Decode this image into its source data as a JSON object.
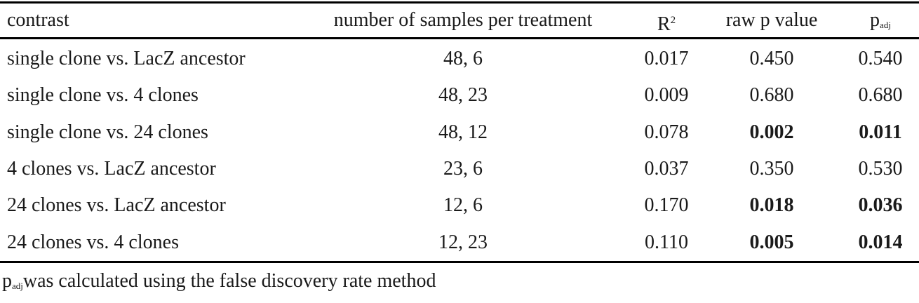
{
  "table": {
    "headers": {
      "contrast": "contrast",
      "samples": "number of samples per treatment",
      "r2_base": "R",
      "r2_sup": "2",
      "raw_p": "raw p value",
      "padj_base": "p",
      "padj_sub": "adj"
    },
    "rows": [
      {
        "contrast": "single clone vs. LacZ ancestor",
        "samples": "48, 6",
        "r2": "0.017",
        "raw_p": "0.450",
        "padj": "0.540",
        "raw_bold": false,
        "padj_bold": false
      },
      {
        "contrast": "single clone vs. 4 clones",
        "samples": "48, 23",
        "r2": "0.009",
        "raw_p": "0.680",
        "padj": "0.680",
        "raw_bold": false,
        "padj_bold": false
      },
      {
        "contrast": "single clone vs. 24 clones",
        "samples": "48, 12",
        "r2": "0.078",
        "raw_p": "0.002",
        "padj": "0.011",
        "raw_bold": true,
        "padj_bold": true
      },
      {
        "contrast": "4 clones vs. LacZ ancestor",
        "samples": "23, 6",
        "r2": "0.037",
        "raw_p": "0.350",
        "padj": "0.530",
        "raw_bold": false,
        "padj_bold": false
      },
      {
        "contrast": "24 clones vs. LacZ ancestor",
        "samples": "12, 6",
        "r2": "0.170",
        "raw_p": "0.018",
        "padj": "0.036",
        "raw_bold": true,
        "padj_bold": true
      },
      {
        "contrast": "24 clones vs. 4 clones",
        "samples": "12, 23",
        "r2": "0.110",
        "raw_p": "0.005",
        "padj": "0.014",
        "raw_bold": true,
        "padj_bold": true
      }
    ]
  },
  "footnote": {
    "base": "p",
    "sub": "adj",
    "text": "was calculated using the false discovery rate method"
  }
}
